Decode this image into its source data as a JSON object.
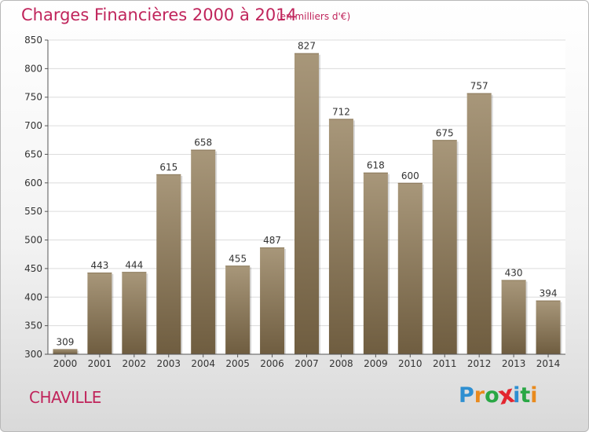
{
  "header": {
    "title": "Charges Financières 2000 à 2014",
    "unit": "(en milliers d'€)"
  },
  "footer": {
    "commune": "CHAVILLE",
    "brand_letters": [
      "P",
      "r",
      "o",
      "x",
      "i",
      "t",
      "i"
    ],
    "brand_colors": [
      "#2e8fd1",
      "#e98a1d",
      "#2aa745",
      "#e3262f",
      "#2e8fd1",
      "#2aa745",
      "#e98a1d"
    ]
  },
  "colors": {
    "bar_top": "#a8977a",
    "bar_bottom": "#6f5d40",
    "grid": "#dcdcdc",
    "title": "#c0245b"
  },
  "chart_data": {
    "type": "bar",
    "title": "Charges Financières 2000 à 2014",
    "subtitle": "(en milliers d'€)",
    "categories": [
      "2000",
      "2001",
      "2002",
      "2003",
      "2004",
      "2005",
      "2006",
      "2007",
      "2008",
      "2009",
      "2010",
      "2011",
      "2012",
      "2013",
      "2014"
    ],
    "values": [
      309,
      443,
      444,
      615,
      658,
      455,
      487,
      827,
      712,
      618,
      600,
      675,
      757,
      430,
      394
    ],
    "ylim": [
      300,
      850
    ],
    "yticks": [
      300,
      350,
      400,
      450,
      500,
      550,
      600,
      650,
      700,
      750,
      800,
      850
    ],
    "grid": true,
    "xlabel": "",
    "ylabel": ""
  }
}
